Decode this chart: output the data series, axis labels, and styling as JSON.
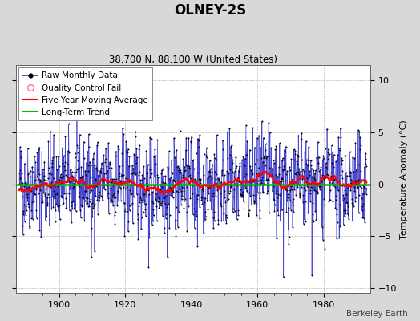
{
  "title": "OLNEY-2S",
  "subtitle": "38.700 N, 88.100 W (United States)",
  "ylabel": "Temperature Anomaly (°C)",
  "attribution": "Berkeley Earth",
  "year_start": 1888,
  "year_end": 1993,
  "ylim": [
    -10.5,
    11.5
  ],
  "yticks": [
    -10,
    -5,
    0,
    5,
    10
  ],
  "background_color": "#d8d8d8",
  "plot_bg_color": "#ffffff",
  "raw_line_color": "#3333cc",
  "raw_dot_color": "#000000",
  "moving_avg_color": "#ff0000",
  "trend_color": "#00bb00",
  "qc_color": "#ff69b4",
  "legend_loc": "upper left",
  "seed": 42,
  "n_months": 1260,
  "long_term_trend_value": -0.02,
  "title_fontsize": 12,
  "subtitle_fontsize": 8.5,
  "legend_fontsize": 7.5,
  "ylabel_fontsize": 8,
  "tick_fontsize": 8,
  "attribution_fontsize": 7.5
}
